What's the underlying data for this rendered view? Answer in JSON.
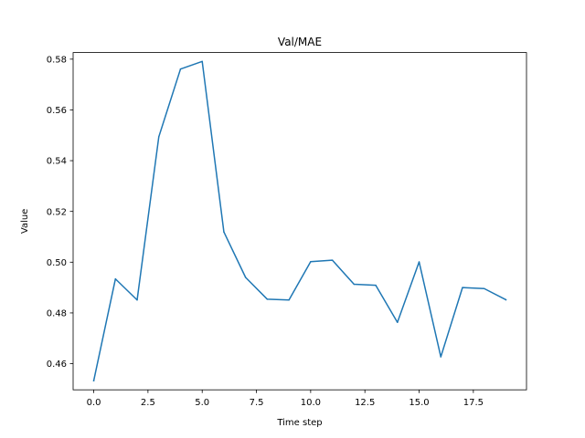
{
  "chart_data": {
    "type": "line",
    "title": "Val/MAE",
    "xlabel": "Time step",
    "ylabel": "Value",
    "xlim": [
      -0.95,
      19.95
    ],
    "ylim": [
      0.4497,
      0.5826
    ],
    "xticks": [
      0.0,
      2.5,
      5.0,
      7.5,
      10.0,
      12.5,
      15.0,
      17.5
    ],
    "xtick_labels": [
      "0.0",
      "2.5",
      "5.0",
      "7.5",
      "10.0",
      "12.5",
      "15.0",
      "17.5"
    ],
    "yticks": [
      0.46,
      0.48,
      0.5,
      0.52,
      0.54,
      0.56,
      0.58
    ],
    "ytick_labels": [
      "0.46",
      "0.48",
      "0.50",
      "0.52",
      "0.54",
      "0.56",
      "0.58"
    ],
    "grid": false,
    "series": [
      {
        "color": "#1f77b4",
        "x": [
          0,
          1,
          2,
          3,
          4,
          5,
          6,
          7,
          8,
          9,
          10,
          11,
          12,
          13,
          14,
          15,
          16,
          17,
          18,
          19
        ],
        "y": [
          0.4533,
          0.4934,
          0.4851,
          0.5494,
          0.5761,
          0.5791,
          0.5119,
          0.494,
          0.4854,
          0.4851,
          0.5002,
          0.5008,
          0.4913,
          0.4909,
          0.4763,
          0.5001,
          0.4627,
          0.49,
          0.4896,
          0.4852
        ]
      }
    ]
  }
}
